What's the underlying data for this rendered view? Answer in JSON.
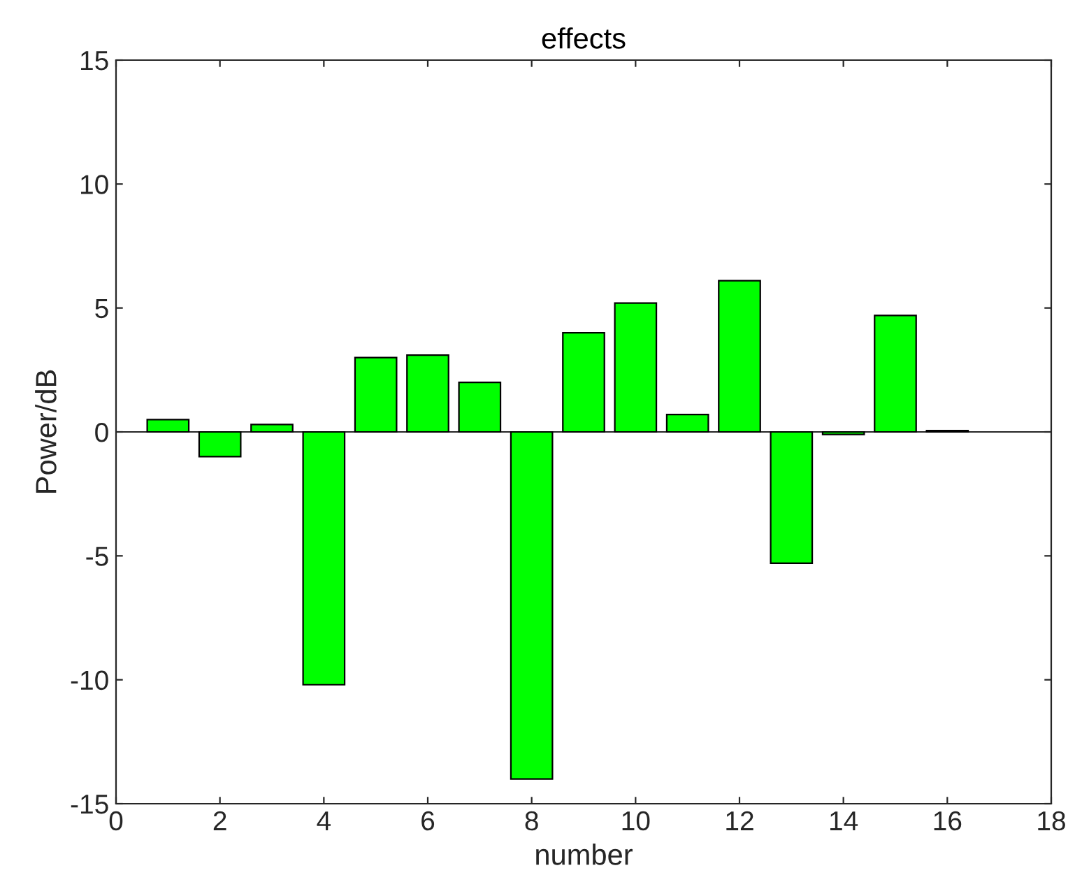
{
  "chart_data": {
    "type": "bar",
    "title": "effects",
    "xlabel": "number",
    "ylabel": "Power/dB",
    "x": [
      1,
      2,
      3,
      4,
      5,
      6,
      7,
      8,
      9,
      10,
      11,
      12,
      13,
      14,
      15,
      16
    ],
    "values": [
      0.5,
      -1.0,
      0.3,
      -10.2,
      3.0,
      3.1,
      2.0,
      -14.0,
      4.0,
      5.2,
      0.7,
      6.1,
      -5.3,
      -0.1,
      4.7,
      0.05
    ],
    "color": "#00ff00",
    "xlim": [
      0,
      18
    ],
    "xticks": [
      0,
      2,
      4,
      6,
      8,
      10,
      12,
      14,
      16,
      18
    ],
    "ylim": [
      -15,
      15
    ],
    "yticks": [
      -15,
      -10,
      -5,
      0,
      5,
      10,
      15
    ],
    "ref_lines": [
      {
        "axis": "y",
        "value": 0,
        "color": "#262626"
      }
    ],
    "grid": false
  }
}
